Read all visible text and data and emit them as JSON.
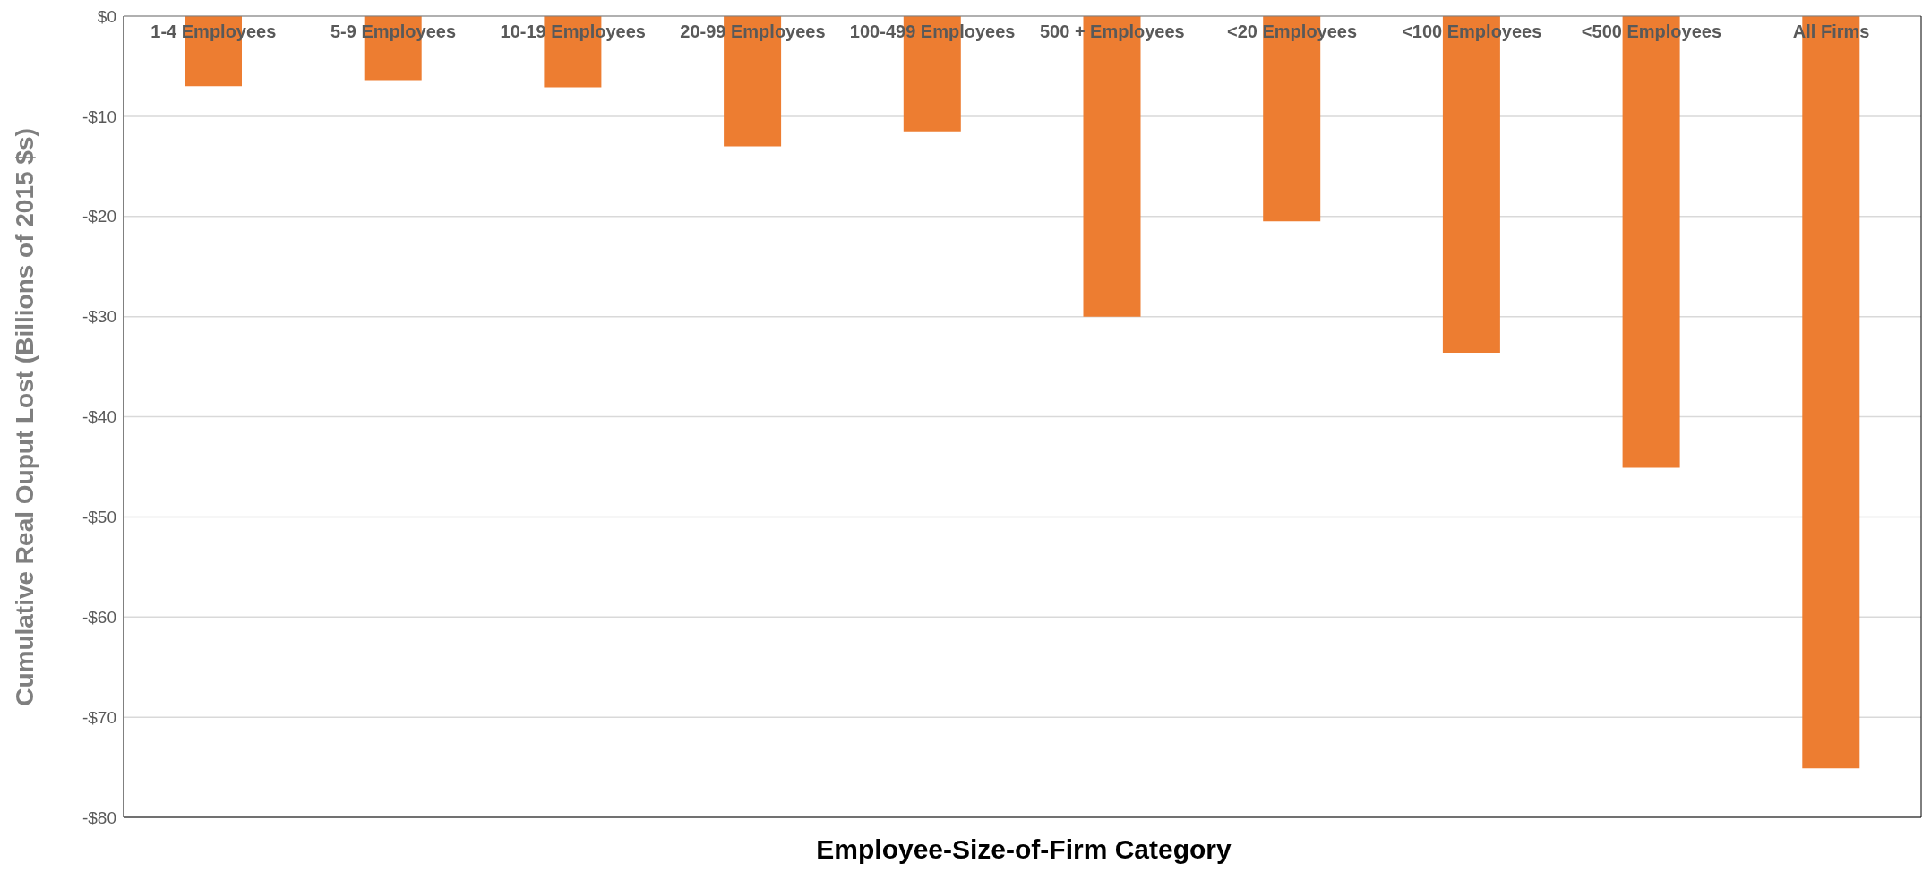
{
  "chart_data": {
    "type": "bar",
    "xlabel": "Employee-Size-of-Firm Category",
    "ylabel": "Cumulative Real Ouput Lost (Billions of 2015 $s)",
    "categories": [
      "1-4 Employees",
      "5-9 Employees",
      "10-19 Employees",
      "20-99 Employees",
      "100-499 Employees",
      "500 + Employees",
      "<20 Employees",
      "<100 Employees",
      "<500 Employees",
      "All Firms"
    ],
    "values": [
      -7.0,
      -6.4,
      -7.1,
      -13.0,
      -11.5,
      -30.0,
      -20.5,
      -33.6,
      -45.1,
      -75.1
    ],
    "color": "#ed7d31",
    "ylim": [
      -80,
      0
    ],
    "yticks": [
      {
        "value": -80,
        "label": "-$80"
      },
      {
        "value": -70,
        "label": "-$70"
      },
      {
        "value": -60,
        "label": "-$60"
      },
      {
        "value": -50,
        "label": "-$50"
      },
      {
        "value": -40,
        "label": "-$40"
      },
      {
        "value": -30,
        "label": "-$30"
      },
      {
        "value": -20,
        "label": "-$20"
      },
      {
        "value": -10,
        "label": "-$10"
      },
      {
        "value": 0,
        "label": "$0"
      }
    ],
    "grid": "y"
  }
}
